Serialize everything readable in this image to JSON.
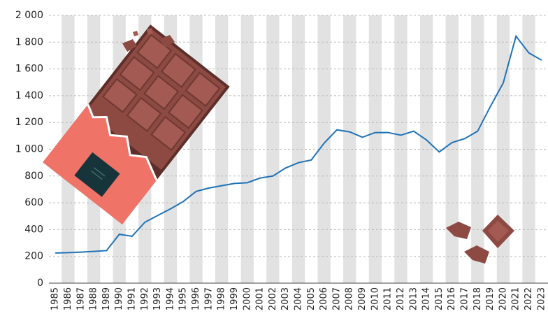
{
  "chart_data": {
    "type": "line",
    "categories": [
      "1985",
      "1986",
      "1987",
      "1988",
      "1989",
      "1990",
      "1991",
      "1992",
      "1993",
      "1994",
      "1995",
      "1996",
      "1997",
      "1998",
      "1999",
      "2000",
      "2001",
      "2002",
      "2003",
      "2004",
      "2005",
      "2006",
      "2007",
      "2008",
      "2009",
      "2010",
      "2011",
      "2012",
      "2013",
      "2014",
      "2015",
      "2016",
      "2017",
      "2018",
      "2019",
      "2020",
      "2021",
      "2022",
      "2023"
    ],
    "series": [
      {
        "color": "#1f72b8",
        "values": [
          225,
          228,
          232,
          237,
          243,
          365,
          350,
          455,
          505,
          555,
          610,
          685,
          710,
          728,
          745,
          750,
          785,
          800,
          860,
          900,
          920,
          1045,
          1145,
          1130,
          1090,
          1125,
          1125,
          1105,
          1135,
          1070,
          980,
          1050,
          1080,
          1135,
          1320,
          1495,
          1845,
          1720,
          1665
        ]
      }
    ],
    "ylim": [
      0,
      2000
    ],
    "yticks": [
      0,
      200,
      400,
      600,
      800,
      {
        "value": 1000,
        "label": "1 000"
      },
      {
        "value": 1200,
        "label": "1 200"
      },
      {
        "value": 1400,
        "label": "1 400"
      },
      {
        "value": 1600,
        "label": "1 600"
      },
      {
        "value": 1800,
        "label": "1 800"
      },
      {
        "value": 2000,
        "label": "2 000"
      }
    ],
    "grid": true,
    "band_color": "#e2e2e2"
  }
}
